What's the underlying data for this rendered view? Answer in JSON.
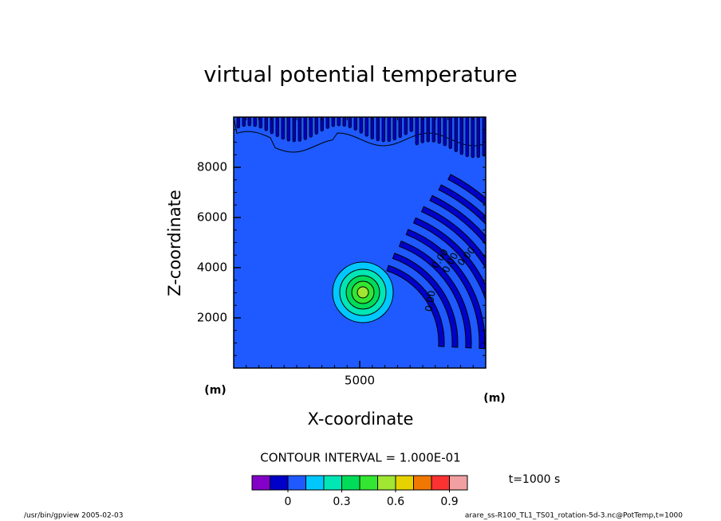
{
  "chart_data": {
    "type": "contour",
    "title": "virtual potential temperature",
    "x_label": "X-coordinate",
    "y_label": "Z-coordinate",
    "x_unit": "(m)",
    "y_unit": "(m)",
    "xlim": [
      0,
      10000
    ],
    "ylim": [
      0,
      10000
    ],
    "xticks": [
      5000
    ],
    "yticks": [
      2000,
      4000,
      6000,
      8000
    ],
    "contour_labels": [
      "0.00",
      "0.00",
      "0.00",
      "0.00"
    ],
    "contour_interval": "CONTOUR INTERVAL = 1.000E-01",
    "colorbar": {
      "levels": [
        -0.2,
        -0.1,
        0,
        0.1,
        0.2,
        0.3,
        0.4,
        0.5,
        0.6,
        0.7,
        0.8,
        0.9,
        1.0
      ],
      "colors": [
        "#8200c8",
        "#0000c8",
        "#1e5aff",
        "#00c8ff",
        "#00e6b4",
        "#00dc5a",
        "#32e632",
        "#a0e632",
        "#e6d200",
        "#f07800",
        "#fa3232",
        "#f0a0a0"
      ],
      "ticks": [
        0,
        0.3,
        0.6,
        0.9
      ]
    },
    "time_label": "t=1000 s",
    "footer_left": "/usr/bin/gpview  2005-02-03",
    "footer_right": "arare_ss-R100_TL1_TS01_rotation-5d-3.nc@PotTemp,t=1000"
  }
}
